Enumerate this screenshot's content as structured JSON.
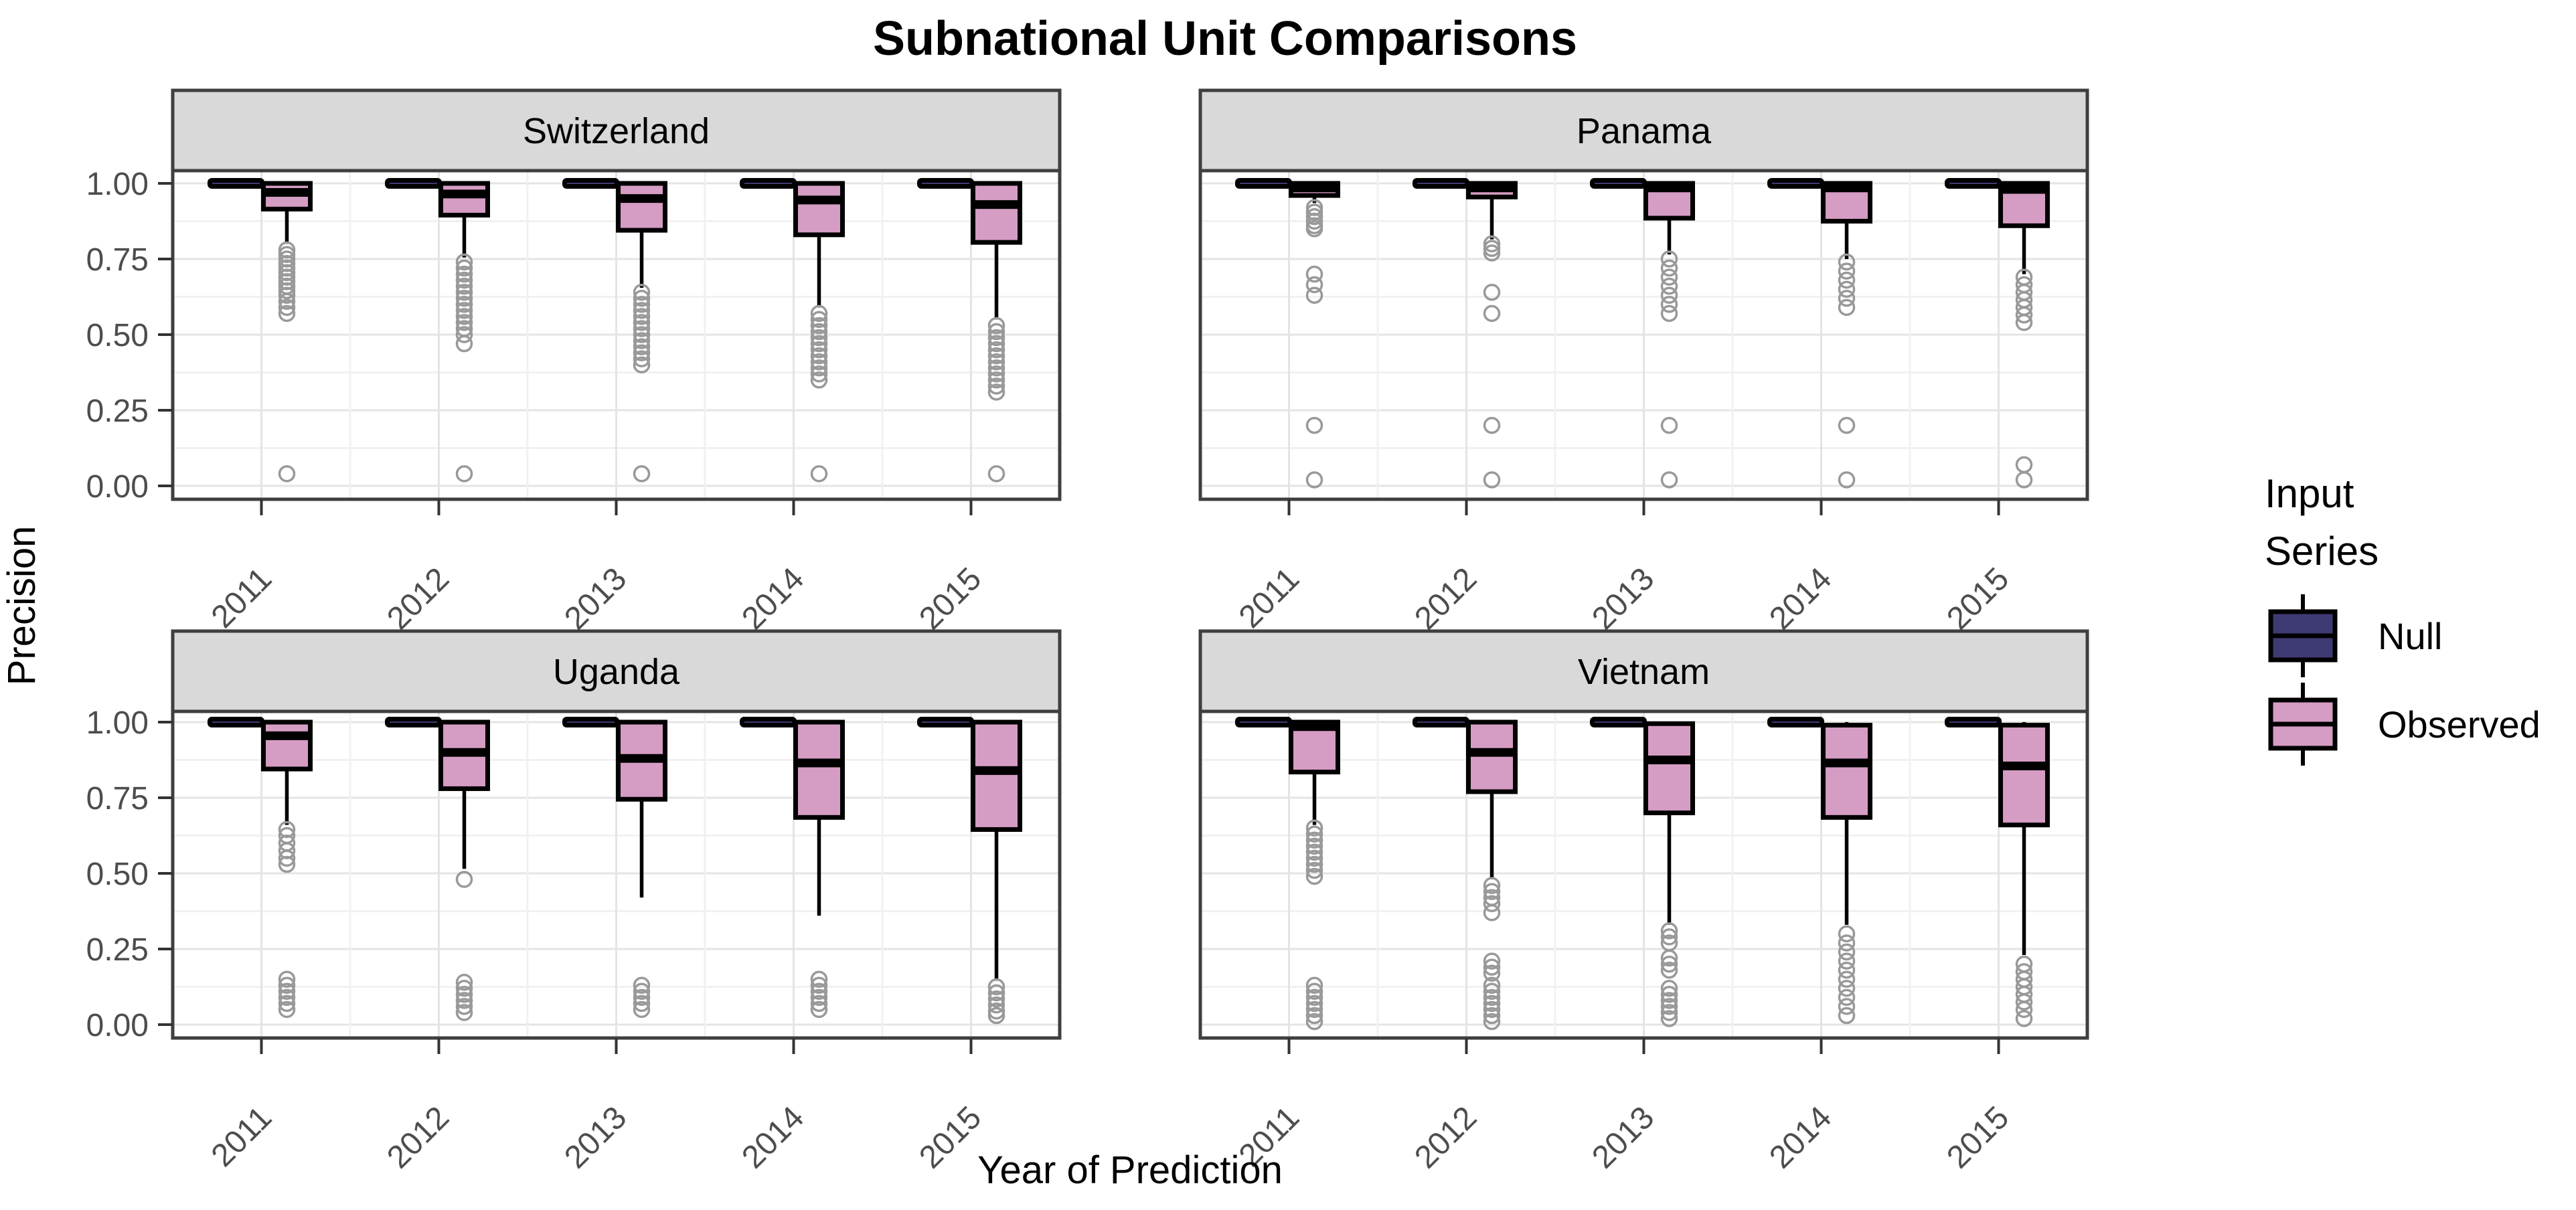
{
  "chart_data": {
    "type": "boxplot",
    "title": "Subnational Unit Comparisons",
    "xlabel": "Year of Prediction",
    "ylabel": "Precision",
    "x_categories": [
      "2011",
      "2012",
      "2013",
      "2014",
      "2015"
    ],
    "y_axis": {
      "ticks": [
        {
          "label": "1.00",
          "value": 1.0
        },
        {
          "label": "0.75",
          "value": 0.75
        },
        {
          "label": "0.50",
          "value": 0.5
        },
        {
          "label": "0.25",
          "value": 0.25
        },
        {
          "label": "0.00",
          "value": 0.0
        }
      ],
      "range": [
        0,
        1
      ],
      "minor_step": 0.125,
      "grid": true
    },
    "legend": {
      "title": "Input Series",
      "position": "right",
      "entries": [
        {
          "label": "Null",
          "color": "#3E3A73"
        },
        {
          "label": "Observed",
          "color": "#D59CC4"
        }
      ]
    },
    "colors": {
      "null_fill": "#3E3A73",
      "observed_fill": "#D59CC4",
      "box_border": "#000000",
      "strip_bg": "#D9D9D9",
      "panel_border": "#3F3F3F",
      "grid_major": "#E4E4E4",
      "grid_minor": "#F1F1F1",
      "outlier": "#999999",
      "axis_text": "#4D4D4D"
    },
    "facets": [
      {
        "name": "Switzerland",
        "row": 0,
        "col": 0,
        "groups": [
          {
            "year": "2011",
            "null": {
              "value": 1.0
            },
            "observed": {
              "q3": 1.0,
              "med": 0.97,
              "q1": 0.915,
              "whisker_lo": 0.8,
              "outliers": [
                0.78,
                0.765,
                0.75,
                0.735,
                0.72,
                0.705,
                0.69,
                0.675,
                0.66,
                0.645,
                0.63,
                0.61,
                0.59,
                0.57,
                0.04
              ]
            }
          },
          {
            "year": "2012",
            "null": {
              "value": 1.0
            },
            "observed": {
              "q3": 1.0,
              "med": 0.965,
              "q1": 0.895,
              "whisker_lo": 0.755,
              "outliers": [
                0.74,
                0.72,
                0.7,
                0.68,
                0.66,
                0.64,
                0.62,
                0.6,
                0.58,
                0.56,
                0.54,
                0.52,
                0.5,
                0.47,
                0.04
              ]
            }
          },
          {
            "year": "2013",
            "null": {
              "value": 1.0
            },
            "observed": {
              "q3": 1.0,
              "med": 0.95,
              "q1": 0.845,
              "whisker_lo": 0.655,
              "outliers": [
                0.64,
                0.62,
                0.6,
                0.58,
                0.56,
                0.54,
                0.52,
                0.5,
                0.48,
                0.46,
                0.44,
                0.42,
                0.4,
                0.04
              ]
            }
          },
          {
            "year": "2014",
            "null": {
              "value": 1.0
            },
            "observed": {
              "q3": 1.0,
              "med": 0.945,
              "q1": 0.83,
              "whisker_lo": 0.59,
              "outliers": [
                0.57,
                0.55,
                0.53,
                0.51,
                0.49,
                0.47,
                0.45,
                0.43,
                0.41,
                0.39,
                0.37,
                0.35,
                0.04
              ]
            }
          },
          {
            "year": "2015",
            "null": {
              "value": 1.0
            },
            "observed": {
              "q3": 1.0,
              "med": 0.93,
              "q1": 0.805,
              "whisker_lo": 0.55,
              "outliers": [
                0.53,
                0.51,
                0.49,
                0.47,
                0.45,
                0.43,
                0.41,
                0.39,
                0.37,
                0.35,
                0.33,
                0.31,
                0.04
              ]
            }
          }
        ]
      },
      {
        "name": "Panama",
        "row": 0,
        "col": 1,
        "groups": [
          {
            "year": "2011",
            "null": {
              "value": 1.0
            },
            "observed": {
              "q3": 1.0,
              "med": 0.985,
              "q1": 0.96,
              "whisker_lo": 0.935,
              "outliers": [
                0.92,
                0.905,
                0.89,
                0.875,
                0.86,
                0.85,
                0.7,
                0.665,
                0.63,
                0.2,
                0.02
              ]
            }
          },
          {
            "year": "2012",
            "null": {
              "value": 1.0
            },
            "observed": {
              "q3": 1.0,
              "med": 0.985,
              "q1": 0.955,
              "whisker_lo": 0.815,
              "outliers": [
                0.8,
                0.785,
                0.77,
                0.64,
                0.57,
                0.2,
                0.02
              ]
            }
          },
          {
            "year": "2013",
            "null": {
              "value": 1.0
            },
            "observed": {
              "q3": 1.0,
              "med": 0.985,
              "q1": 0.885,
              "whisker_lo": 0.765,
              "outliers": [
                0.75,
                0.72,
                0.69,
                0.66,
                0.63,
                0.6,
                0.57,
                0.2,
                0.02
              ]
            }
          },
          {
            "year": "2014",
            "null": {
              "value": 1.0
            },
            "observed": {
              "q3": 1.0,
              "med": 0.985,
              "q1": 0.875,
              "whisker_lo": 0.75,
              "outliers": [
                0.74,
                0.71,
                0.68,
                0.65,
                0.62,
                0.59,
                0.2,
                0.02
              ]
            }
          },
          {
            "year": "2015",
            "null": {
              "value": 1.0
            },
            "observed": {
              "q3": 1.0,
              "med": 0.98,
              "q1": 0.86,
              "whisker_lo": 0.7,
              "outliers": [
                0.69,
                0.665,
                0.64,
                0.615,
                0.59,
                0.565,
                0.54,
                0.07,
                0.02
              ]
            }
          }
        ]
      },
      {
        "name": "Uganda",
        "row": 1,
        "col": 0,
        "groups": [
          {
            "year": "2011",
            "null": {
              "value": 1.0
            },
            "observed": {
              "q3": 1.0,
              "med": 0.955,
              "q1": 0.845,
              "whisker_lo": 0.66,
              "outliers": [
                0.645,
                0.625,
                0.6,
                0.575,
                0.55,
                0.53,
                0.15,
                0.13,
                0.11,
                0.09,
                0.07,
                0.05
              ]
            }
          },
          {
            "year": "2012",
            "null": {
              "value": 1.0
            },
            "observed": {
              "q3": 1.0,
              "med": 0.9,
              "q1": 0.78,
              "whisker_lo": 0.515,
              "outliers": [
                0.48,
                0.14,
                0.12,
                0.1,
                0.08,
                0.06,
                0.04
              ]
            }
          },
          {
            "year": "2013",
            "null": {
              "value": 1.0
            },
            "observed": {
              "q3": 1.0,
              "med": 0.88,
              "q1": 0.745,
              "whisker_lo": 0.42,
              "outliers": [
                0.13,
                0.11,
                0.09,
                0.07,
                0.05
              ]
            }
          },
          {
            "year": "2014",
            "null": {
              "value": 1.0
            },
            "observed": {
              "q3": 1.0,
              "med": 0.865,
              "q1": 0.685,
              "whisker_lo": 0.36,
              "outliers": [
                0.15,
                0.13,
                0.11,
                0.09,
                0.07,
                0.05
              ]
            }
          },
          {
            "year": "2015",
            "null": {
              "value": 1.0
            },
            "observed": {
              "q3": 1.0,
              "med": 0.84,
              "q1": 0.645,
              "whisker_lo": 0.145,
              "outliers": [
                0.125,
                0.105,
                0.085,
                0.065,
                0.045,
                0.03
              ]
            }
          }
        ]
      },
      {
        "name": "Vietnam",
        "row": 1,
        "col": 1,
        "groups": [
          {
            "year": "2011",
            "null": {
              "value": 1.0
            },
            "observed": {
              "q3": 1.0,
              "med": 0.985,
              "q1": 0.835,
              "whisker_lo": 0.66,
              "outliers": [
                0.65,
                0.63,
                0.61,
                0.59,
                0.57,
                0.55,
                0.53,
                0.51,
                0.49,
                0.13,
                0.11,
                0.09,
                0.07,
                0.05,
                0.03,
                0.01
              ]
            }
          },
          {
            "year": "2012",
            "null": {
              "value": 1.0
            },
            "observed": {
              "q3": 1.0,
              "med": 0.9,
              "q1": 0.77,
              "whisker_lo": 0.48,
              "outliers": [
                0.46,
                0.44,
                0.42,
                0.4,
                0.37,
                0.21,
                0.19,
                0.17,
                0.13,
                0.11,
                0.09,
                0.07,
                0.05,
                0.03,
                0.01
              ]
            }
          },
          {
            "year": "2013",
            "null": {
              "value": 1.0
            },
            "observed": {
              "q3": 0.995,
              "med": 0.875,
              "q1": 0.7,
              "whisker_lo": 0.33,
              "outliers": [
                0.31,
                0.29,
                0.27,
                0.22,
                0.2,
                0.18,
                0.12,
                0.1,
                0.08,
                0.06,
                0.04,
                0.02
              ]
            }
          },
          {
            "year": "2014",
            "null": {
              "value": 1.0
            },
            "observed": {
              "q3": 0.99,
              "med": 0.865,
              "q1": 0.685,
              "whisker_hi": 1.0,
              "whisker_lo": 0.33,
              "outliers": [
                0.3,
                0.27,
                0.24,
                0.21,
                0.18,
                0.15,
                0.12,
                0.09,
                0.06,
                0.03
              ]
            }
          },
          {
            "year": "2015",
            "null": {
              "value": 1.0
            },
            "observed": {
              "q3": 0.99,
              "med": 0.855,
              "q1": 0.66,
              "whisker_hi": 1.0,
              "whisker_lo": 0.23,
              "outliers": [
                0.2,
                0.175,
                0.15,
                0.125,
                0.1,
                0.075,
                0.05,
                0.02
              ]
            }
          }
        ]
      }
    ]
  }
}
